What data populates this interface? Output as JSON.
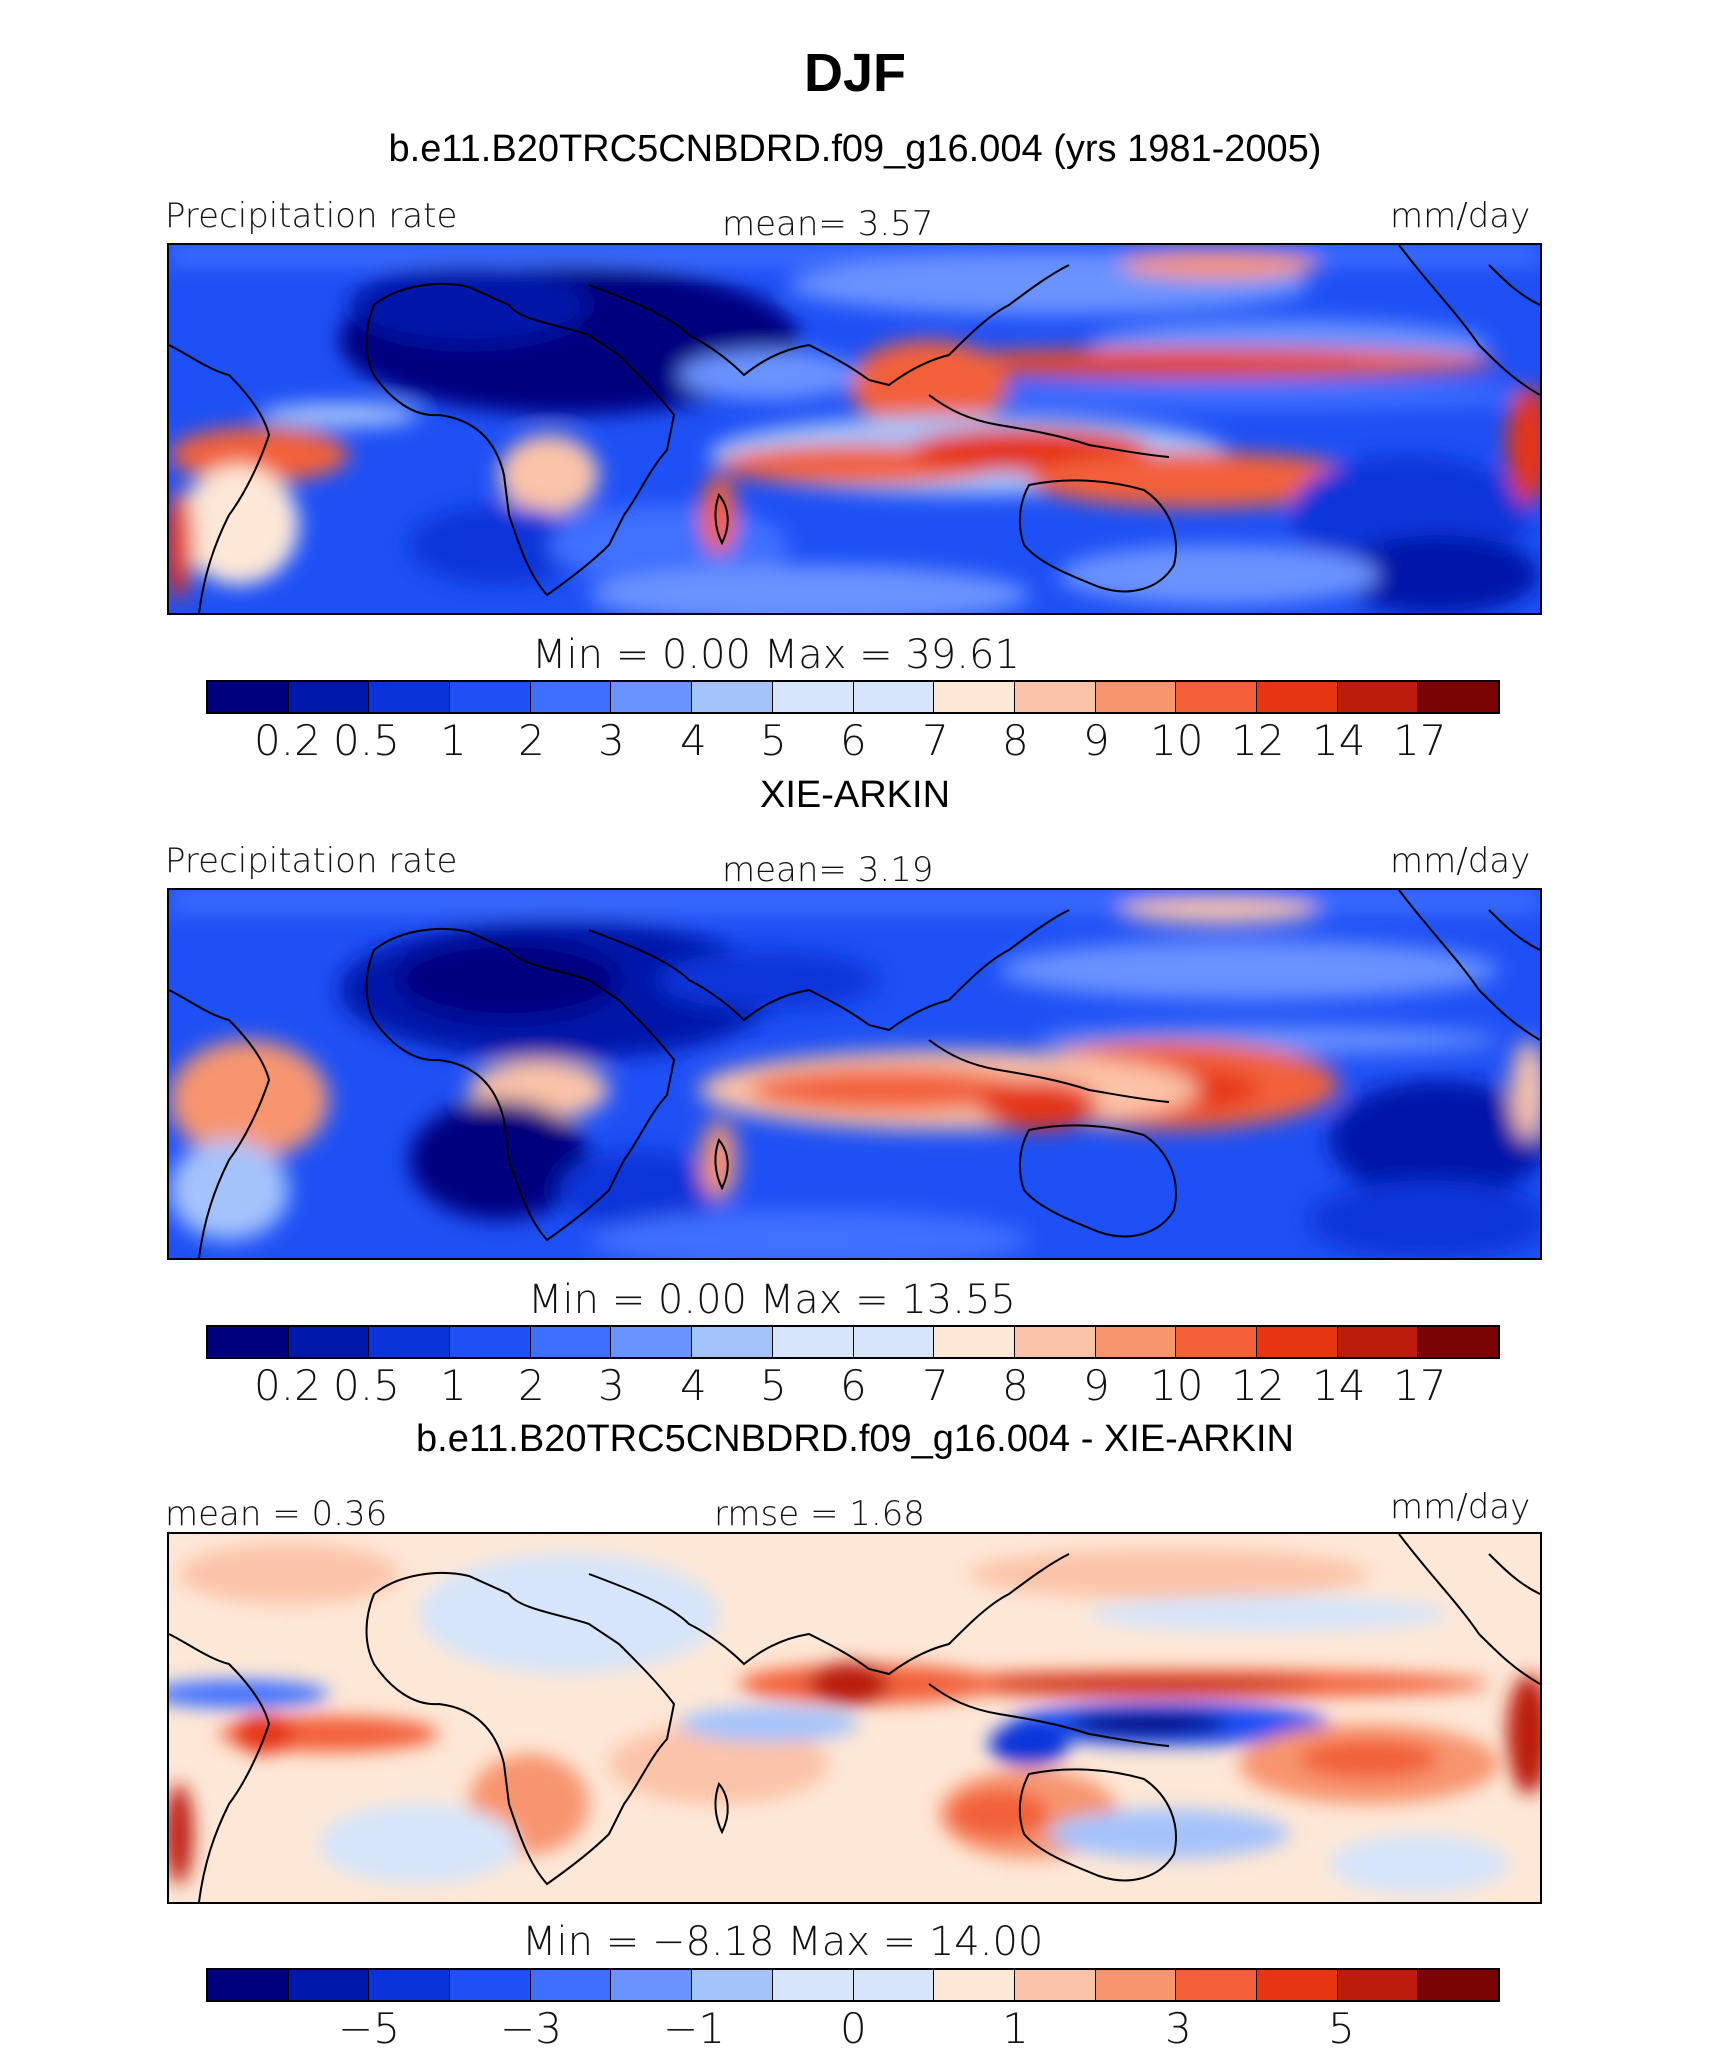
{
  "title": "DJF",
  "panels": [
    {
      "id": "model",
      "title": "b.e11.B20TRC5CNBDRD.f09_g16.004 (yrs 1981-2005)",
      "left_label": "Precipitation rate",
      "center_label": "mean=    3.57",
      "units": "mm/day",
      "minmax": "Min  =     0.00  Max  =    39.61",
      "ticks": [
        "0.2",
        "0.5",
        "1",
        "2",
        "3",
        "4",
        "5",
        "6",
        "7",
        "8",
        "9",
        "10",
        "12",
        "14",
        "17"
      ]
    },
    {
      "id": "obs",
      "title": "XIE-ARKIN",
      "left_label": "Precipitation rate",
      "center_label": "mean=    3.19",
      "units": "mm/day",
      "minmax": "Min  =     0.00  Max  =    13.55",
      "ticks": [
        "0.2",
        "0.5",
        "1",
        "2",
        "3",
        "4",
        "5",
        "6",
        "7",
        "8",
        "9",
        "10",
        "12",
        "14",
        "17"
      ]
    },
    {
      "id": "diff",
      "title": "b.e11.B20TRC5CNBDRD.f09_g16.004 - XIE-ARKIN",
      "left_label": "mean  =    0.36",
      "center_label": "rmse  =    1.68",
      "units": "mm/day",
      "minmax": "Min  =   −8.18  Max  =    14.00",
      "ticks": [
        "−5",
        "−3",
        "−1",
        "0",
        "1",
        "3",
        "5"
      ]
    }
  ],
  "colorbar": [
    "#00007f",
    "#0018a8",
    "#0a34d9",
    "#1e50f5",
    "#3f6fff",
    "#6b93ff",
    "#a5c3fb",
    "#d6e5fa",
    "#fde7d6",
    "#fbc3a8",
    "#f7956f",
    "#f2603a",
    "#e53512",
    "#bb1c0c",
    "#7a0404"
  ]
}
